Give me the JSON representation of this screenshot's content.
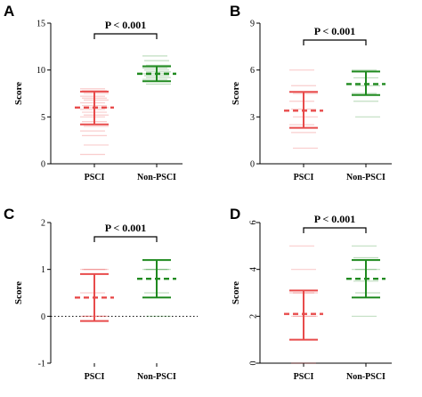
{
  "chart_data": [
    {
      "panel": "A",
      "type": "scatter",
      "ylabel": "Score",
      "ylim": [
        0,
        15
      ],
      "yticks": [
        "0",
        "5",
        "10",
        "15"
      ],
      "tick_rotation": 0,
      "categories": [
        "PSCI",
        "Non-PSCI"
      ],
      "colors": [
        "#e84b4b",
        "#1f8a1f"
      ],
      "means": [
        6.0,
        9.6
      ],
      "sd_low": [
        4.2,
        8.8
      ],
      "sd_high": [
        7.7,
        10.4
      ],
      "points": [
        [
          8,
          7.8,
          7.5,
          7.2,
          7,
          6.8,
          6.5,
          6.2,
          6,
          5.8,
          5.5,
          5.2,
          5,
          4.5,
          4,
          3.5,
          3,
          2,
          1
        ],
        [
          11.5,
          11,
          10.5,
          10.2,
          10,
          9.8,
          9.6,
          9.4,
          9.2,
          9,
          8.8,
          8.5
        ]
      ],
      "annotation": "P < 0.001",
      "grid": false,
      "legend": "none"
    },
    {
      "panel": "B",
      "type": "scatter",
      "ylabel": "Score",
      "ylim": [
        0,
        9
      ],
      "yticks": [
        "0",
        "3",
        "6",
        "9"
      ],
      "tick_rotation": 0,
      "categories": [
        "PSCI",
        "Non-PSCI"
      ],
      "colors": [
        "#e84b4b",
        "#1f8a1f"
      ],
      "means": [
        3.4,
        5.1
      ],
      "sd_low": [
        2.3,
        4.4
      ],
      "sd_high": [
        4.6,
        5.9
      ],
      "points": [
        [
          6,
          5,
          4.5,
          4,
          3.5,
          3,
          2.5,
          2,
          1
        ],
        [
          6,
          5.5,
          5,
          4.5,
          4,
          3
        ]
      ],
      "annotation": "P < 0.001",
      "grid": false,
      "legend": "none"
    },
    {
      "panel": "C",
      "type": "scatter",
      "ylabel": "Score",
      "ylim": [
        -1,
        2
      ],
      "yticks": [
        "-1",
        "0",
        "1",
        "2"
      ],
      "tick_rotation": 0,
      "categories": [
        "PSCI",
        "Non-PSCI"
      ],
      "colors": [
        "#e84b4b",
        "#1f8a1f"
      ],
      "means": [
        0.4,
        0.8
      ],
      "sd_low": [
        -0.1,
        0.4
      ],
      "sd_high": [
        0.9,
        1.2
      ],
      "points": [
        [
          1,
          1,
          1,
          0.5,
          0,
          0,
          0
        ],
        [
          1.2,
          1,
          1,
          1,
          0.5,
          0
        ]
      ],
      "annotation": "P < 0.001",
      "reference_line": 0,
      "grid": false,
      "legend": "none"
    },
    {
      "panel": "D",
      "type": "scatter",
      "ylabel": "Score",
      "ylim": [
        0,
        6
      ],
      "yticks": [
        "0",
        "2",
        "4",
        "6"
      ],
      "tick_rotation": -90,
      "categories": [
        "PSCI",
        "Non-PSCI"
      ],
      "colors": [
        "#e84b4b",
        "#1f8a1f"
      ],
      "means": [
        2.1,
        3.6
      ],
      "sd_low": [
        1.0,
        2.8
      ],
      "sd_high": [
        3.1,
        4.4
      ],
      "points": [
        [
          5,
          4,
          3,
          3,
          2,
          2,
          1,
          0
        ],
        [
          5,
          4.5,
          4,
          4,
          3.5,
          3,
          2
        ]
      ],
      "annotation": "P < 0.001",
      "grid": false,
      "legend": "none"
    }
  ]
}
